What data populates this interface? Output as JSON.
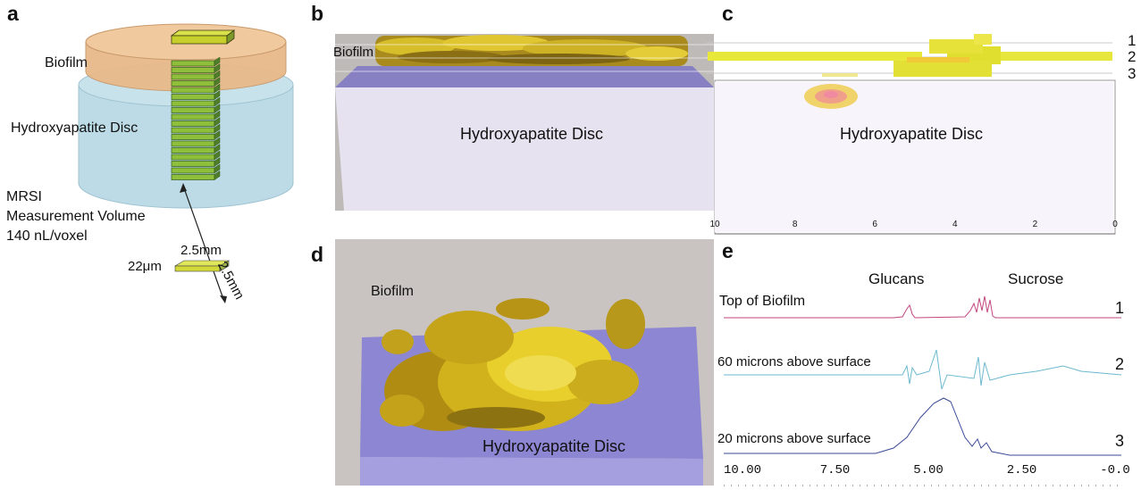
{
  "panels": {
    "a": {
      "letter": "a",
      "biofilm_label": "Biofilm",
      "disc_label": "Hydroxyapatite Disc",
      "mrsi_lines": [
        "MRSI",
        "Measurement Volume",
        "140 nL/voxel"
      ],
      "dim_thickness": "22μm",
      "dim_width": "2.5mm",
      "dim_depth": "2.5mm"
    },
    "b": {
      "letter": "b",
      "biofilm_label": "Biofilm",
      "disc_label": "Hydroxyapatite Disc"
    },
    "c": {
      "letter": "c",
      "disc_label": "Hydroxyapatite Disc",
      "row_labels": [
        "1",
        "2",
        "3"
      ],
      "axis_ticks": [
        "10",
        "8",
        "6",
        "4",
        "2",
        "0"
      ]
    },
    "d": {
      "letter": "d",
      "biofilm_label": "Biofilm",
      "disc_label": "Hydroxyapatite Disc"
    },
    "e": {
      "letter": "e",
      "peak_labels": [
        "Glucans",
        "Sucrose"
      ],
      "trace_labels": [
        "Top of Biofilm",
        "60 microns above surface",
        "20 microns above surface"
      ],
      "trace_numbers": [
        "1",
        "2",
        "3"
      ],
      "trace_colors": [
        "#c2457f",
        "#6db8cf",
        "#3a4a96"
      ],
      "axis_ticks": [
        "10.00",
        "7.50",
        "5.00",
        "2.50",
        "-0.0"
      ]
    }
  }
}
